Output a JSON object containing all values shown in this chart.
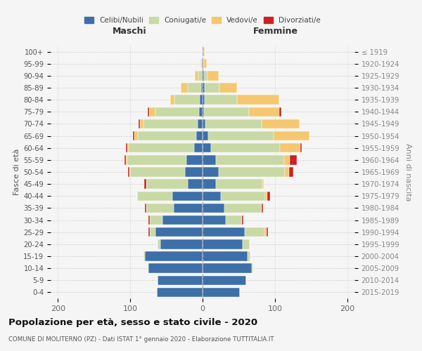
{
  "age_groups": [
    "0-4",
    "5-9",
    "10-14",
    "15-19",
    "20-24",
    "25-29",
    "30-34",
    "35-39",
    "40-44",
    "45-49",
    "50-54",
    "55-59",
    "60-64",
    "65-69",
    "70-74",
    "75-79",
    "80-84",
    "85-89",
    "90-94",
    "95-99",
    "100+"
  ],
  "birth_years": [
    "2015-2019",
    "2010-2014",
    "2005-2009",
    "2000-2004",
    "1995-1999",
    "1990-1994",
    "1985-1989",
    "1980-1984",
    "1975-1979",
    "1970-1974",
    "1965-1969",
    "1960-1964",
    "1955-1959",
    "1950-1954",
    "1945-1949",
    "1940-1944",
    "1935-1939",
    "1930-1934",
    "1925-1929",
    "1920-1924",
    "≤ 1919"
  ],
  "colors": {
    "celibi": "#3d6fa8",
    "coniugati": "#c8d9a5",
    "vedovi": "#f5c870",
    "divorziati": "#cc2222"
  },
  "males": {
    "celibi": [
      63,
      62,
      75,
      80,
      58,
      65,
      55,
      40,
      42,
      20,
      24,
      22,
      12,
      9,
      7,
      5,
      4,
      2,
      1,
      1,
      0
    ],
    "coniugati": [
      0,
      0,
      1,
      2,
      4,
      8,
      18,
      38,
      48,
      58,
      76,
      82,
      90,
      80,
      75,
      60,
      35,
      18,
      5,
      1,
      0
    ],
    "vedovi": [
      0,
      0,
      0,
      0,
      0,
      0,
      0,
      0,
      0,
      0,
      1,
      2,
      2,
      5,
      5,
      9,
      6,
      10,
      5,
      1,
      0
    ],
    "divorziati": [
      0,
      0,
      0,
      0,
      0,
      2,
      2,
      2,
      0,
      3,
      2,
      2,
      2,
      2,
      1,
      2,
      0,
      0,
      0,
      0,
      0
    ]
  },
  "females": {
    "celibi": [
      52,
      60,
      68,
      62,
      55,
      58,
      32,
      30,
      25,
      18,
      22,
      18,
      12,
      8,
      4,
      2,
      3,
      3,
      2,
      1,
      1
    ],
    "coniugati": [
      0,
      0,
      2,
      4,
      10,
      28,
      22,
      52,
      62,
      65,
      92,
      95,
      95,
      90,
      78,
      62,
      45,
      20,
      5,
      1,
      0
    ],
    "vedovi": [
      0,
      0,
      0,
      0,
      0,
      2,
      0,
      0,
      2,
      2,
      6,
      8,
      28,
      50,
      52,
      42,
      58,
      25,
      15,
      4,
      2
    ],
    "divorziati": [
      0,
      0,
      0,
      0,
      0,
      2,
      2,
      2,
      4,
      0,
      5,
      9,
      2,
      0,
      0,
      3,
      0,
      0,
      0,
      0,
      0
    ]
  },
  "xlim": 210,
  "title": "Popolazione per età, sesso e stato civile - 2020",
  "subtitle": "COMUNE DI MOLITERNO (PZ) - Dati ISTAT 1° gennaio 2020 - Elaborazione TUTTITALIA.IT",
  "ylabel_left": "Fasce di età",
  "ylabel_right": "Anni di nascita",
  "xlabel_left": "Maschi",
  "xlabel_right": "Femmine",
  "legend_labels": [
    "Celibi/Nubili",
    "Coniugati/e",
    "Vedovi/e",
    "Divorziati/e"
  ],
  "background_color": "#f5f5f5"
}
